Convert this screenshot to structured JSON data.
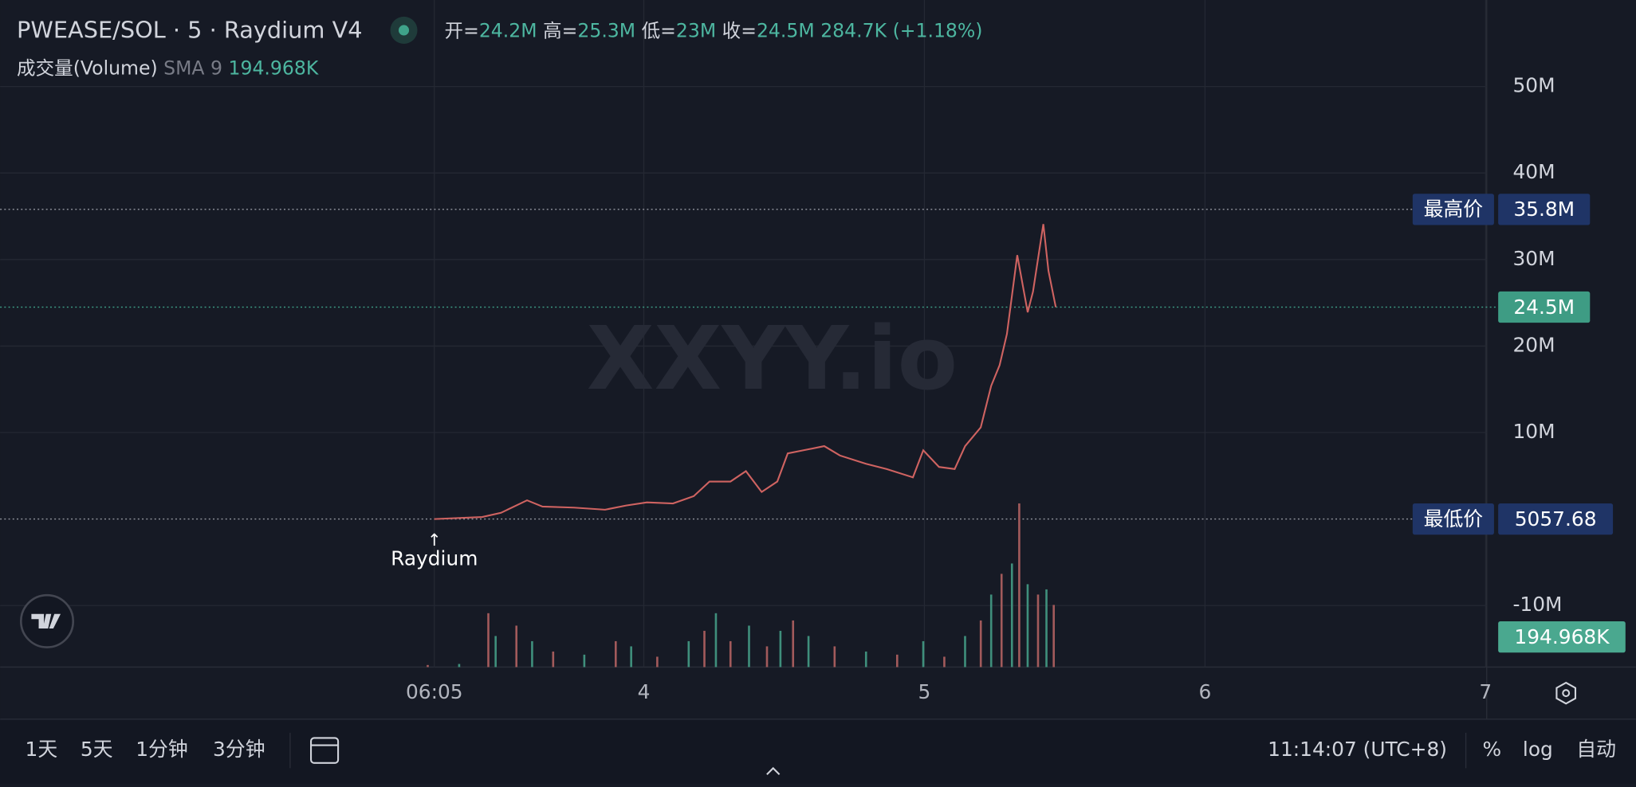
{
  "chart_data": [
    {
      "type": "line",
      "title": "PWEASE/SOL · 5 · Raydium V4",
      "ohlc": [
        {
          "label": "开=",
          "value": 24200000,
          "value_label": "24.2M"
        },
        {
          "label": "高=",
          "value": 25300000,
          "value_label": "25.3M"
        },
        {
          "label": "低=",
          "value": 23000000,
          "value_label": "23M"
        },
        {
          "label": "收=",
          "value": 24500000,
          "value_label": "24.5M"
        }
      ],
      "change": 284700,
      "change_label": "284.7K",
      "change_pct": 1.18,
      "change_pct_label": "(+1.18%)",
      "watermark": "XXYY.io",
      "x": [
        3.253,
        3.424,
        3.491,
        3.584,
        3.639,
        3.751,
        3.862,
        3.937,
        4.011,
        4.104,
        4.178,
        4.234,
        4.309,
        4.364,
        4.42,
        4.476,
        4.513,
        4.569,
        4.643,
        4.699,
        4.792,
        4.866,
        4.959,
        4.996,
        5.052,
        5.108,
        5.145,
        5.201,
        5.238,
        5.268,
        5.294,
        5.331,
        5.368,
        5.387,
        5.424,
        5.442,
        5.468
      ],
      "values": [
        5058,
        240000,
        720000,
        2170000,
        1450000,
        1330000,
        1080000,
        1570000,
        1930000,
        1810000,
        2650000,
        4340000,
        4340000,
        5540000,
        3130000,
        4340000,
        7590000,
        7950000,
        8430000,
        7350000,
        6390000,
        5780000,
        4820000,
        7950000,
        6020000,
        5780000,
        8430000,
        10600000,
        15400000,
        17800000,
        21400000,
        30500000,
        23900000,
        26300000,
        34100000,
        28700000,
        24500000
      ],
      "color": "#cf6361",
      "xlim": [
        1.706,
        7.004
      ],
      "xticks": [
        {
          "value": 3.2535,
          "label": "06:05"
        },
        4,
        5,
        6,
        7
      ],
      "ylim": [
        -17108434,
        60000000
      ],
      "yticks": [
        {
          "value": -10000000,
          "label": "-10M"
        },
        {
          "value": 10000000,
          "label": "10M"
        },
        {
          "value": 20000000,
          "label": "20M"
        },
        {
          "value": 30000000,
          "label": "30M"
        },
        {
          "value": 40000000,
          "label": "40M"
        },
        {
          "value": 50000000,
          "label": "50M"
        }
      ],
      "grid": true,
      "high": {
        "label": "最高价",
        "value": 35800000,
        "value_label": "35.8M"
      },
      "low": {
        "label": "最低价",
        "value": 5057.68
      },
      "last": {
        "value": 24500000,
        "value_label": "24.5M"
      },
      "annotation": {
        "x": 3.2535,
        "arrow": "↑",
        "text": "Raydium"
      }
    },
    {
      "type": "bar",
      "name": "成交量(Volume)",
      "indicator": "SMA 9",
      "last": 194968,
      "last_label": "194.968K",
      "color": "#a25a5b",
      "x": [
        3.23,
        3.342,
        3.446,
        3.472,
        3.546,
        3.602,
        3.677,
        3.788,
        3.9,
        3.955,
        4.048,
        4.16,
        4.216,
        4.257,
        4.309,
        4.375,
        4.439,
        4.487,
        4.532,
        4.587,
        4.68,
        4.792,
        4.903,
        4.996,
        5.071,
        5.145,
        5.201,
        5.238,
        5.275,
        5.312,
        5.338,
        5.368,
        5.405,
        5.435,
        5.461
      ],
      "values": [
        13400,
        20100,
        348400,
        201000,
        268000,
        167500,
        100500,
        80400,
        167500,
        134000,
        67000,
        167500,
        234500,
        348400,
        167500,
        268000,
        134000,
        234500,
        301500,
        201000,
        134000,
        100500,
        80400,
        167500,
        67000,
        201000,
        301500,
        469000,
        603000,
        670000,
        1058600,
        536000,
        469000,
        502500,
        402000
      ],
      "xlim": [
        1.706,
        7.004
      ],
      "ylim": [
        0,
        1200000
      ]
    }
  ],
  "toolbar": {
    "ranges": [
      "1天",
      "5天",
      "1分钟",
      "3分钟"
    ],
    "time": "11:14:07 (UTC+8)",
    "options": [
      "%",
      "log",
      "自动"
    ]
  }
}
